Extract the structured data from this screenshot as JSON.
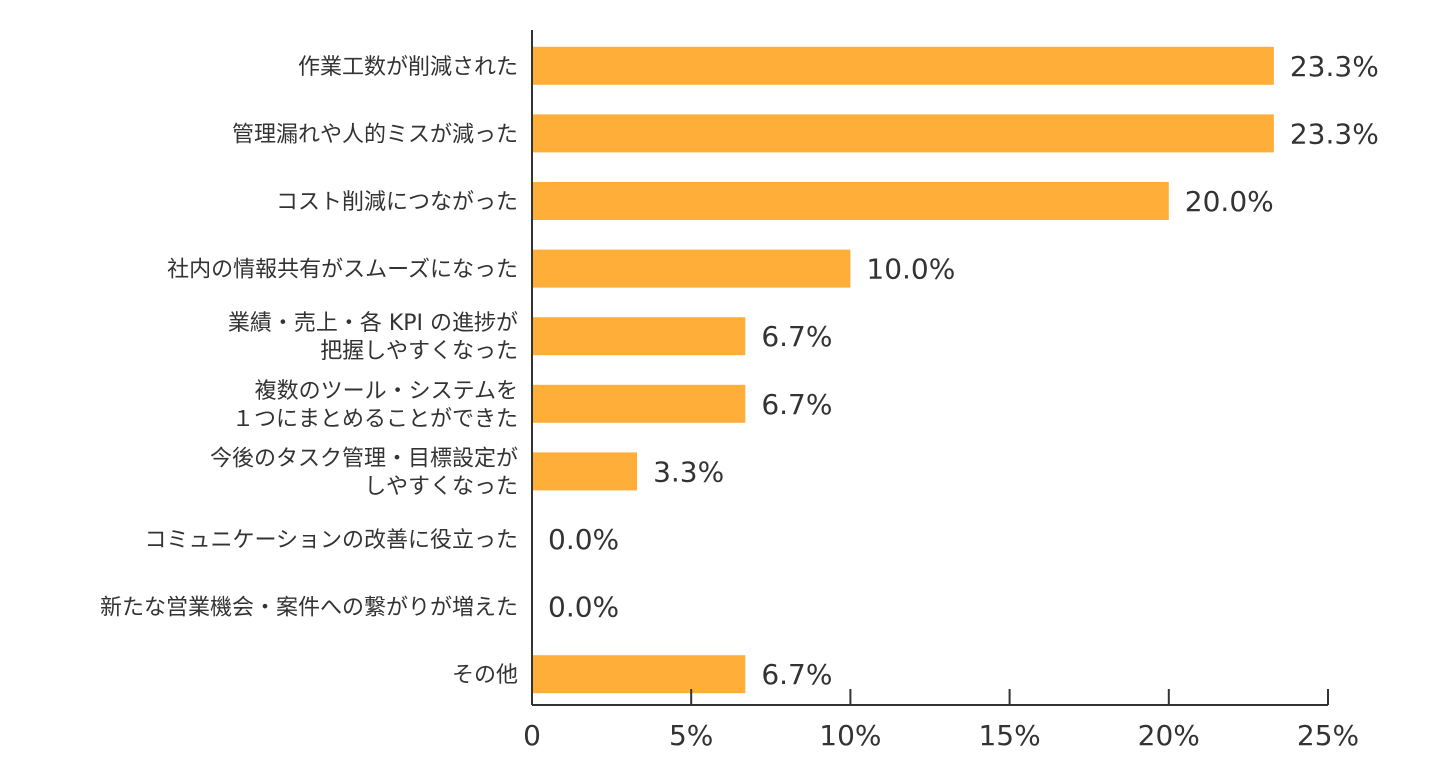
{
  "chart_data": {
    "type": "bar",
    "orientation": "horizontal",
    "categories": [
      [
        "作業工数が削減された"
      ],
      [
        "管理漏れや人的ミスが減った"
      ],
      [
        "コスト削減につながった"
      ],
      [
        "社内の情報共有がスムーズになった"
      ],
      [
        "業績・売上・各 KPI の進捗が",
        "把握しやすくなった"
      ],
      [
        "複数のツール・システムを",
        "１つにまとめることができた"
      ],
      [
        "今後のタスク管理・目標設定が",
        "しやすくなった"
      ],
      [
        "コミュニケーションの改善に役立った"
      ],
      [
        "新たな営業機会・案件への繋がりが増えた"
      ],
      [
        "その他"
      ]
    ],
    "values": [
      23.3,
      23.3,
      20.0,
      10.0,
      6.7,
      6.7,
      3.3,
      0.0,
      0.0,
      6.7
    ],
    "value_labels": [
      "23.3%",
      "23.3%",
      "20.0%",
      "10.0%",
      "6.7%",
      "6.7%",
      "3.3%",
      "0.0%",
      "0.0%",
      "6.7%"
    ],
    "xlim": [
      0,
      25
    ],
    "x_ticks": [
      0,
      5,
      10,
      15,
      20,
      25
    ],
    "x_tick_labels": [
      "0",
      "5%",
      "10%",
      "15%",
      "20%",
      "25%"
    ],
    "bar_color": "#FFAE3A",
    "axis_color": "#333333",
    "grid": false,
    "legend": "none"
  }
}
